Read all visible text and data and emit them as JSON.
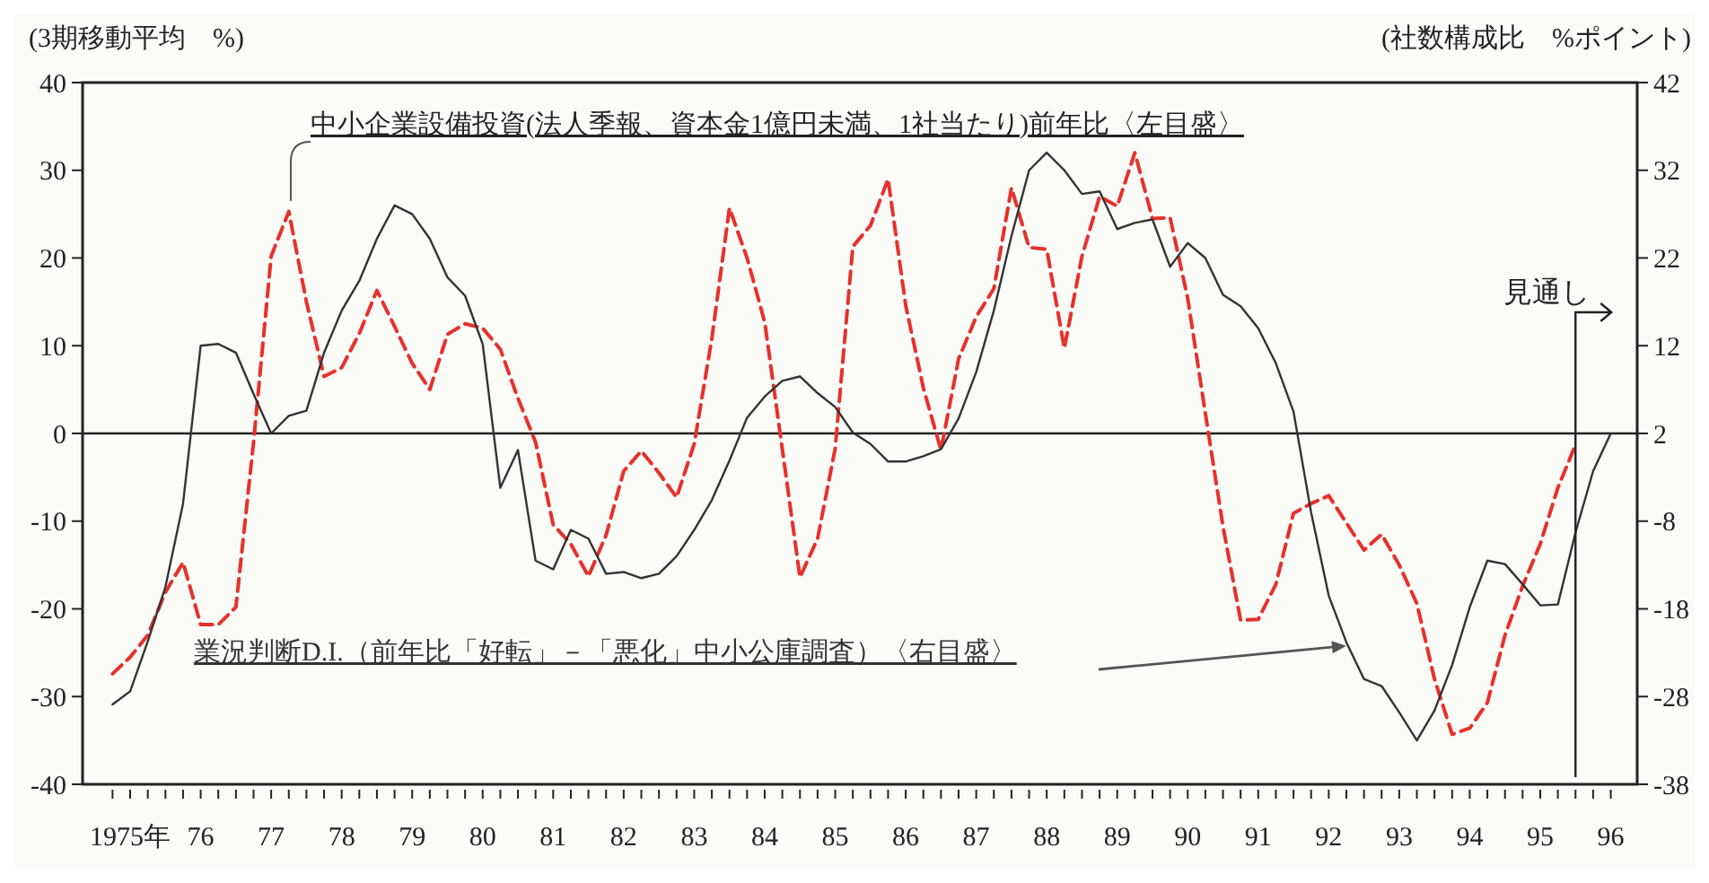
{
  "chart_data": {
    "type": "line",
    "ylabel": "(3期移動平均　%)",
    "y2label": "(社数構成比　%ポイント)",
    "categories": [
      null,
      "1975年",
      null,
      null,
      null,
      "76",
      null,
      null,
      null,
      "77",
      null,
      null,
      null,
      "78",
      null,
      null,
      null,
      "79",
      null,
      null,
      null,
      "80",
      null,
      null,
      null,
      "81",
      null,
      null,
      null,
      "82",
      null,
      null,
      null,
      "83",
      null,
      null,
      null,
      "84",
      null,
      null,
      null,
      "85",
      null,
      null,
      null,
      "86",
      null,
      null,
      null,
      "87",
      null,
      null,
      null,
      "88",
      null,
      null,
      null,
      "89",
      null,
      null,
      null,
      "90",
      null,
      null,
      null,
      "91",
      null,
      null,
      null,
      "92",
      null,
      null,
      null,
      "93",
      null,
      null,
      null,
      "94",
      null,
      null,
      null,
      "95",
      null,
      null,
      null,
      "96"
    ],
    "ylim": [
      -40,
      40
    ],
    "yticks": [
      -40,
      -30,
      -20,
      -10,
      0,
      10,
      20,
      30,
      40
    ],
    "y2lim": [
      -38,
      42
    ],
    "y2ticks": [
      -38,
      -28,
      -18,
      -8,
      2,
      12,
      22,
      32,
      42
    ],
    "ref_lines": [
      {
        "axis": "y",
        "value": 0
      }
    ],
    "annotations": [
      "見通し"
    ],
    "series": [
      {
        "name": "中小企業設備投資(法人季報、資本金1億円未満、1社当たり)前年比〈左目盛〉",
        "color": "#e8302a",
        "line_style": "dashed",
        "values": [
          -27.4,
          -25.5,
          -23,
          -18.1,
          -14.7,
          -21.8,
          -21.8,
          -19.8,
          -1,
          20.2,
          25.3,
          15,
          6.5,
          7.5,
          11.4,
          16.3,
          12.2,
          8,
          5,
          11.3,
          12.5,
          12,
          9.6,
          4,
          -1,
          -10.4,
          -12.6,
          -16.3,
          -11.6,
          -4.3,
          -2,
          -4.5,
          -7.3,
          -1.2,
          10.8,
          25.7,
          20,
          12.7,
          -1.8,
          -16.4,
          -12,
          -1.7,
          21.3,
          23.7,
          29,
          14.6,
          5.2,
          -1.9,
          8.5,
          13.3,
          16.5,
          28,
          21.2,
          21,
          9.7,
          20.2,
          27,
          25.9,
          32,
          24.5,
          24.6,
          15.4,
          2.3,
          -10.6,
          -21.3,
          -21.2,
          -17.2,
          -9.1,
          -8,
          -7.1,
          -10.2,
          -13.3,
          -11.5,
          -15,
          -19.4,
          -28,
          -34.3,
          -33.6,
          -30.7,
          -23,
          -17.4,
          -12.6,
          -6.2,
          -1.3,
          null,
          null
        ]
      },
      {
        "name": "業況判断D.I.（前年比「好転」－「悪化」中小公庫調査）〈右目盛〉",
        "color": "#333333",
        "line_style": "solid",
        "axis": "y2",
        "values": [
          -28.9,
          -27.4,
          -21.7,
          -15.5,
          -6,
          12,
          12.2,
          11.2,
          6.5,
          2,
          4,
          4.6,
          11.2,
          16,
          19.4,
          24.2,
          28,
          27,
          24.2,
          19.8,
          17.7,
          12.2,
          -4.2,
          0.1,
          -12.5,
          -13.5,
          -9,
          -10,
          -14,
          -13.8,
          -14.5,
          -14,
          -12,
          -9,
          -5.6,
          -1.1,
          3.8,
          6.2,
          8,
          8.5,
          6.6,
          5,
          2.1,
          0.8,
          -1.2,
          -1.2,
          -0.6,
          0.2,
          3.7,
          9,
          16,
          24.5,
          32,
          34,
          32,
          29.3,
          29.6,
          25.3,
          26,
          26.4,
          21,
          23.7,
          22,
          17.8,
          16.5,
          14,
          10,
          4.5,
          -7,
          -16.5,
          -21.8,
          -26,
          -26.8,
          -29.8,
          -33,
          -29.6,
          -24.4,
          -17.8,
          -12.5,
          -12.9,
          -15.2,
          -17.6,
          -17.5,
          -9.3,
          -2.3,
          2
        ]
      }
    ]
  }
}
